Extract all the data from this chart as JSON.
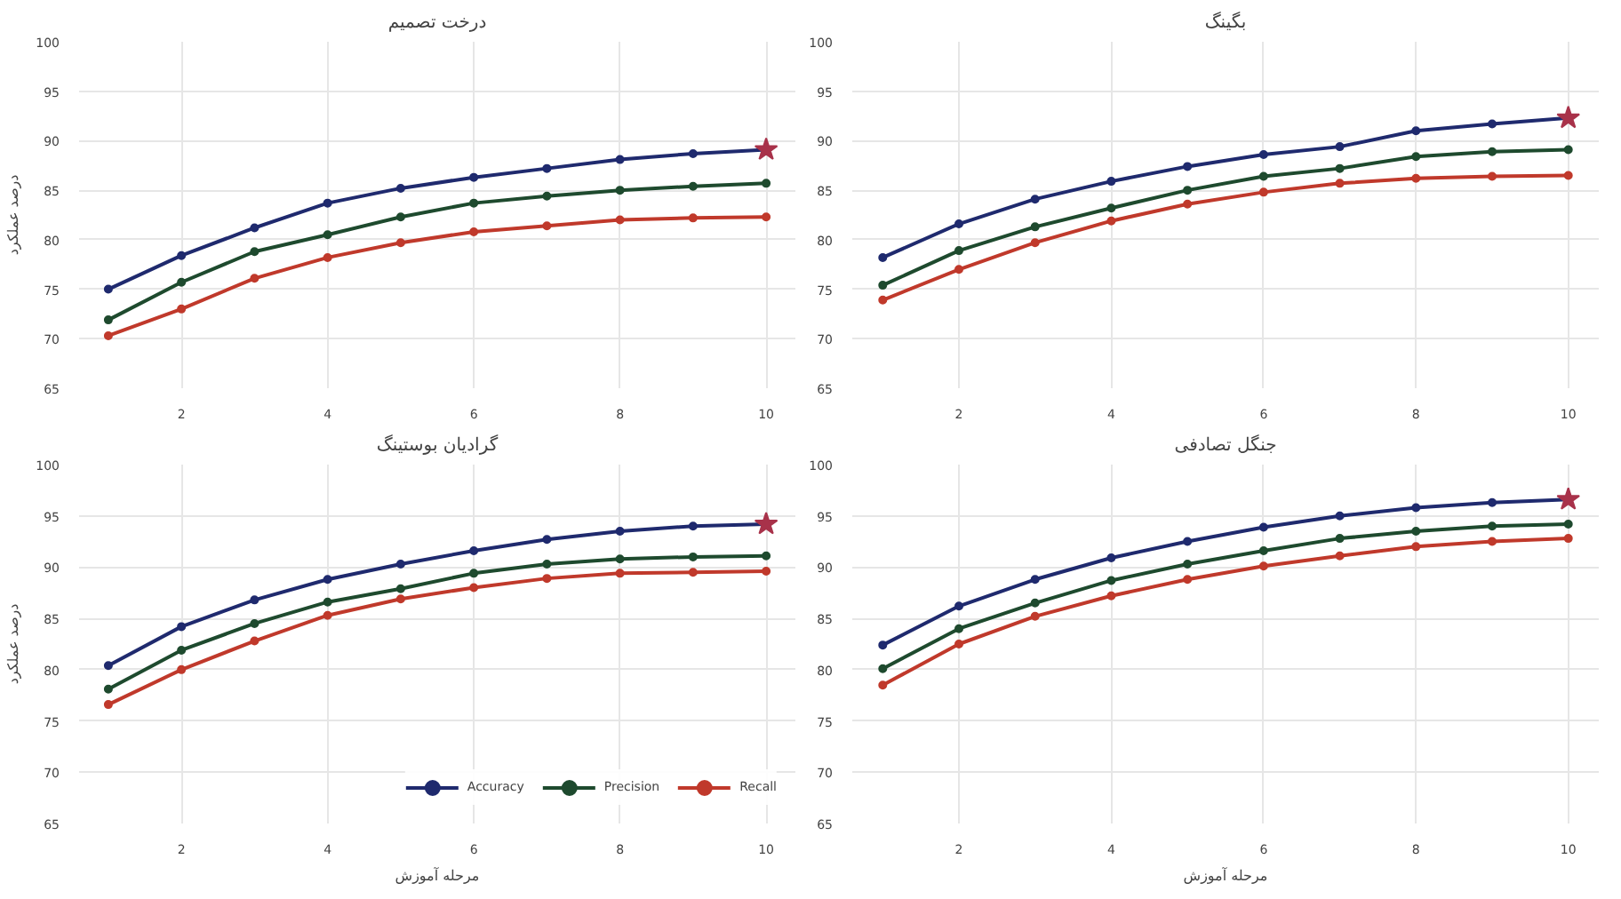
{
  "chart_data": [
    {
      "type": "line",
      "title": "درخت تصمیم",
      "ylabel": "درصد عملکرد",
      "x": [
        1,
        2,
        3,
        4,
        5,
        6,
        7,
        8,
        9,
        10
      ],
      "xlim": [
        0.6,
        10.4
      ],
      "xticks": [
        2,
        4,
        6,
        8,
        10
      ],
      "ylim": [
        65,
        100
      ],
      "yticks": [
        65,
        70,
        75,
        80,
        85,
        90,
        95,
        100
      ],
      "grid": true,
      "marker": "circle",
      "line_style": "solid",
      "legend": false,
      "series": [
        {
          "color": "#1f2a6e",
          "values": [
            75.0,
            78.4,
            81.2,
            83.7,
            85.2,
            86.3,
            87.2,
            88.1,
            88.7,
            89.1
          ]
        },
        {
          "color": "#1e4a2e",
          "values": [
            71.9,
            75.7,
            78.8,
            80.5,
            82.3,
            83.7,
            84.4,
            85.0,
            85.4,
            85.7
          ]
        },
        {
          "color": "#c0392b",
          "values": [
            70.3,
            73.0,
            76.1,
            78.2,
            79.7,
            80.8,
            81.4,
            82.0,
            82.2,
            82.3
          ]
        },
        {
          "type": "scatter",
          "marker": "star",
          "color": "#a8324a",
          "values": [
            null,
            null,
            null,
            null,
            null,
            null,
            null,
            null,
            null,
            89.1
          ]
        }
      ]
    },
    {
      "type": "line",
      "title": "بگینگ",
      "x": [
        1,
        2,
        3,
        4,
        5,
        6,
        7,
        8,
        9,
        10
      ],
      "xlim": [
        0.6,
        10.4
      ],
      "xticks": [
        2,
        4,
        6,
        8,
        10
      ],
      "ylim": [
        65,
        100
      ],
      "yticks": [
        65,
        70,
        75,
        80,
        85,
        90,
        95,
        100
      ],
      "grid": true,
      "marker": "circle",
      "line_style": "solid",
      "legend": false,
      "series": [
        {
          "color": "#1f2a6e",
          "values": [
            78.2,
            81.6,
            84.1,
            85.9,
            87.4,
            88.6,
            89.4,
            91.0,
            91.7,
            92.3
          ]
        },
        {
          "color": "#1e4a2e",
          "values": [
            75.4,
            78.9,
            81.3,
            83.2,
            85.0,
            86.4,
            87.2,
            88.4,
            88.9,
            89.1
          ]
        },
        {
          "color": "#c0392b",
          "values": [
            73.9,
            77.0,
            79.7,
            81.9,
            83.6,
            84.8,
            85.7,
            86.2,
            86.4,
            86.5
          ]
        },
        {
          "type": "scatter",
          "marker": "star",
          "color": "#a8324a",
          "values": [
            null,
            null,
            null,
            null,
            null,
            null,
            null,
            null,
            null,
            92.3
          ]
        }
      ]
    },
    {
      "type": "line",
      "title": "گرادیان بوستینگ",
      "ylabel": "درصد عملکرد",
      "xlabel": "مرحله آموزش",
      "x": [
        1,
        2,
        3,
        4,
        5,
        6,
        7,
        8,
        9,
        10
      ],
      "xlim": [
        0.6,
        10.4
      ],
      "xticks": [
        2,
        4,
        6,
        8,
        10
      ],
      "ylim": [
        65,
        100
      ],
      "yticks": [
        65,
        70,
        75,
        80,
        85,
        90,
        95,
        100
      ],
      "grid": true,
      "marker": "circle",
      "line_style": "solid",
      "legend": "bottom right",
      "series": [
        {
          "name": "Accuracy",
          "color": "#1f2a6e",
          "values": [
            80.4,
            84.2,
            86.8,
            88.8,
            90.3,
            91.6,
            92.7,
            93.5,
            94.0,
            94.2
          ]
        },
        {
          "name": "Precision",
          "color": "#1e4a2e",
          "values": [
            78.1,
            81.9,
            84.5,
            86.6,
            87.9,
            89.4,
            90.3,
            90.8,
            91.0,
            91.1
          ]
        },
        {
          "name": "Recall",
          "color": "#c0392b",
          "values": [
            76.6,
            80.0,
            82.8,
            85.3,
            86.9,
            88.0,
            88.9,
            89.4,
            89.5,
            89.6
          ]
        },
        {
          "type": "scatter",
          "marker": "star",
          "color": "#a8324a",
          "values": [
            null,
            null,
            null,
            null,
            null,
            null,
            null,
            null,
            null,
            94.2
          ]
        }
      ]
    },
    {
      "type": "line",
      "title": "جنگل تصادفی",
      "xlabel": "مرحله آموزش",
      "x": [
        1,
        2,
        3,
        4,
        5,
        6,
        7,
        8,
        9,
        10
      ],
      "xlim": [
        0.6,
        10.4
      ],
      "xticks": [
        2,
        4,
        6,
        8,
        10
      ],
      "ylim": [
        65,
        100
      ],
      "yticks": [
        65,
        70,
        75,
        80,
        85,
        90,
        95,
        100
      ],
      "grid": true,
      "marker": "circle",
      "line_style": "solid",
      "legend": false,
      "series": [
        {
          "color": "#1f2a6e",
          "values": [
            82.4,
            86.2,
            88.8,
            90.9,
            92.5,
            93.9,
            95.0,
            95.8,
            96.3,
            96.6
          ]
        },
        {
          "color": "#1e4a2e",
          "values": [
            80.1,
            84.0,
            86.5,
            88.7,
            90.3,
            91.6,
            92.8,
            93.5,
            94.0,
            94.2
          ]
        },
        {
          "color": "#c0392b",
          "values": [
            78.5,
            82.5,
            85.2,
            87.2,
            88.8,
            90.1,
            91.1,
            92.0,
            92.5,
            92.8
          ]
        },
        {
          "type": "scatter",
          "marker": "star",
          "color": "#a8324a",
          "values": [
            null,
            null,
            null,
            null,
            null,
            null,
            null,
            null,
            null,
            96.6
          ]
        }
      ]
    }
  ]
}
